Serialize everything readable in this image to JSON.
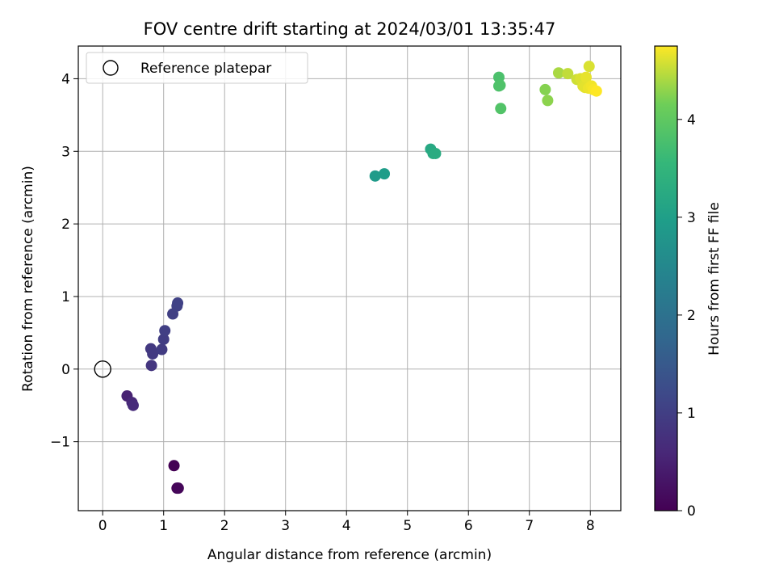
{
  "chart_data": {
    "type": "scatter",
    "title": "FOV centre drift starting at 2024/03/01 13:35:47",
    "xlabel": "Angular distance from reference (arcmin)",
    "ylabel": "Rotation from reference (arcmin)",
    "xlim": [
      -0.4,
      8.5
    ],
    "ylim": [
      -1.95,
      4.45
    ],
    "xticks": [
      0,
      1,
      2,
      3,
      4,
      5,
      6,
      7,
      8
    ],
    "xtick_labels": [
      "0",
      "1",
      "2",
      "3",
      "4",
      "5",
      "6",
      "7",
      "8"
    ],
    "yticks": [
      -1,
      0,
      1,
      2,
      3,
      4
    ],
    "ytick_labels": [
      "−1",
      "0",
      "1",
      "2",
      "3",
      "4"
    ],
    "grid": true,
    "legend": {
      "placement": "top-left",
      "entries": [
        "Reference platepar"
      ]
    },
    "reference_point": {
      "x": 0,
      "y": 0,
      "label": "Reference platepar"
    },
    "colorbar": {
      "label": "Hours from first FF file",
      "range": [
        0,
        4.75
      ],
      "ticks": [
        0,
        1,
        2,
        3,
        4
      ],
      "tick_labels": [
        "0",
        "1",
        "2",
        "3",
        "4"
      ],
      "colormap": "viridis"
    },
    "points": [
      {
        "x": 1.17,
        "y": -1.33,
        "t": 0.0
      },
      {
        "x": 1.22,
        "y": -1.64,
        "t": 0.05
      },
      {
        "x": 1.24,
        "y": -1.64,
        "t": 0.08
      },
      {
        "x": 0.4,
        "y": -0.37,
        "t": 0.5
      },
      {
        "x": 0.48,
        "y": -0.46,
        "t": 0.6
      },
      {
        "x": 0.5,
        "y": -0.5,
        "t": 0.65
      },
      {
        "x": 0.8,
        "y": 0.05,
        "t": 0.85
      },
      {
        "x": 0.79,
        "y": 0.28,
        "t": 0.9
      },
      {
        "x": 0.82,
        "y": 0.21,
        "t": 0.92
      },
      {
        "x": 0.97,
        "y": 0.27,
        "t": 0.95
      },
      {
        "x": 1.0,
        "y": 0.41,
        "t": 0.98
      },
      {
        "x": 1.02,
        "y": 0.53,
        "t": 1.0
      },
      {
        "x": 1.15,
        "y": 0.76,
        "t": 1.03
      },
      {
        "x": 1.22,
        "y": 0.87,
        "t": 1.05
      },
      {
        "x": 1.23,
        "y": 0.91,
        "t": 1.07
      },
      {
        "x": 4.47,
        "y": 2.66,
        "t": 2.9
      },
      {
        "x": 4.62,
        "y": 2.69,
        "t": 2.95
      },
      {
        "x": 5.38,
        "y": 3.03,
        "t": 3.2
      },
      {
        "x": 5.42,
        "y": 2.97,
        "t": 3.25
      },
      {
        "x": 5.46,
        "y": 2.97,
        "t": 3.28
      },
      {
        "x": 6.5,
        "y": 4.02,
        "t": 3.8
      },
      {
        "x": 6.5,
        "y": 3.9,
        "t": 3.82
      },
      {
        "x": 6.52,
        "y": 3.91,
        "t": 3.84
      },
      {
        "x": 6.53,
        "y": 3.59,
        "t": 3.86
      },
      {
        "x": 7.26,
        "y": 3.85,
        "t": 4.25
      },
      {
        "x": 7.3,
        "y": 3.7,
        "t": 4.28
      },
      {
        "x": 7.48,
        "y": 4.08,
        "t": 4.4
      },
      {
        "x": 7.63,
        "y": 4.07,
        "t": 4.5
      },
      {
        "x": 7.78,
        "y": 3.99,
        "t": 4.55
      },
      {
        "x": 7.84,
        "y": 4.0,
        "t": 4.6
      },
      {
        "x": 7.88,
        "y": 3.9,
        "t": 4.62
      },
      {
        "x": 7.91,
        "y": 3.88,
        "t": 4.64
      },
      {
        "x": 7.93,
        "y": 4.02,
        "t": 4.66
      },
      {
        "x": 7.97,
        "y": 3.87,
        "t": 4.68
      },
      {
        "x": 8.02,
        "y": 3.9,
        "t": 4.7
      },
      {
        "x": 8.05,
        "y": 3.85,
        "t": 4.72
      },
      {
        "x": 8.1,
        "y": 3.83,
        "t": 4.75
      },
      {
        "x": 7.98,
        "y": 4.17,
        "t": 4.6
      }
    ]
  }
}
